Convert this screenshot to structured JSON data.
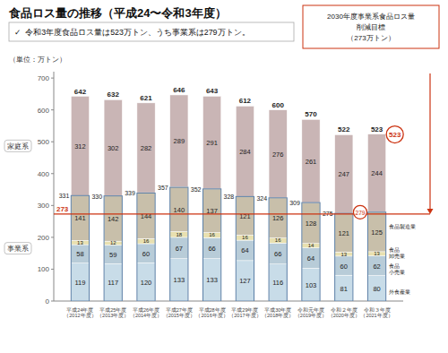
{
  "chart_data": {
    "type": "bar",
    "stacked": true,
    "data_labels": true,
    "grid": false,
    "title": "食品ロス量の推移（平成24〜令和3年度）",
    "subtitle": "✓  令和3年度食品ロス量は523万トン、うち事業系は279万トン。",
    "unit_label": "（単位：万トン）",
    "target_box": [
      "2030年度事業系食品ロス量",
      "削減目標",
      "（273万トン）"
    ],
    "categories": [
      "平成24年度\n（2012年度）",
      "平成25年度\n（2013年度）",
      "平成26年度\n（2014年度）",
      "平成27年度\n（2015年度）",
      "平成28年度\n（2016年度）",
      "平成29年度\n（2017年度）",
      "平成30年度\n（2018年度）",
      "令和元年度\n（2019年度）",
      "令和２年度\n（2020年度）",
      "令和３年度\n（2021年度）"
    ],
    "series": [
      {
        "name": "外食産業",
        "color": "#c8dce8",
        "values": [
          119,
          117,
          120,
          133,
          133,
          127,
          116,
          103,
          81,
          80
        ]
      },
      {
        "name": "食品\n小売業",
        "color": "#b8ccd8",
        "values": [
          58,
          59,
          60,
          67,
          66,
          64,
          66,
          64,
          60,
          62
        ]
      },
      {
        "name": "食品\n卸売業",
        "color": "#e8e0b0",
        "values": [
          13,
          12,
          16,
          18,
          16,
          16,
          16,
          14,
          13,
          13
        ]
      },
      {
        "name": "食品製造業",
        "color": "#c8bfaa",
        "values": [
          141,
          142,
          144,
          140,
          137,
          121,
          126,
          128,
          121,
          125
        ]
      },
      {
        "name": "家庭系",
        "color": "#c9b5b5",
        "values": [
          312,
          302,
          282,
          289,
          291,
          284,
          276,
          261,
          247,
          244
        ]
      }
    ],
    "subtotal_label": "事業系",
    "subtotals": [
      331,
      330,
      339,
      357,
      352,
      328,
      324,
      309,
      275,
      279
    ],
    "totals": [
      642,
      632,
      621,
      646,
      643,
      612,
      600,
      570,
      522,
      523
    ],
    "target": {
      "value": 273,
      "color": "#cc3311"
    },
    "ylim": [
      0,
      720
    ],
    "yticks": [
      0,
      100,
      200,
      300,
      400,
      500,
      600,
      700
    ]
  }
}
